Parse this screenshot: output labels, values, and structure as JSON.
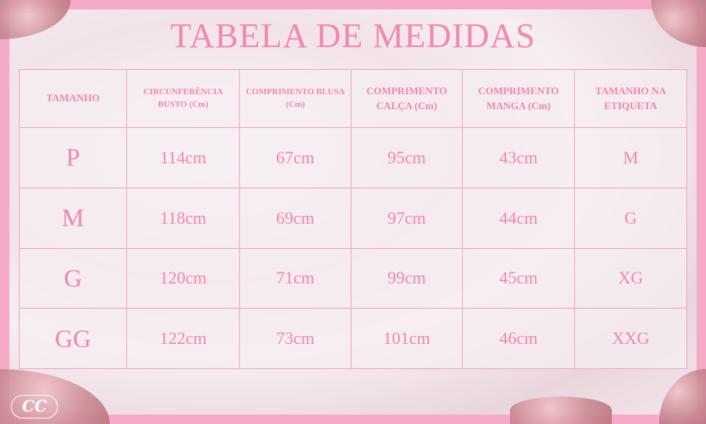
{
  "title": "TABELA DE MEDIDAS",
  "headers": [
    "TAMANHO",
    "CIRCUNFERÊNCIA BUSTO (Cm)",
    "COMPRIMENTO BLUSA (Cm)",
    "COMPRIMENTO CALÇA (Cm)",
    "COMPRIMENTO MANGA (Cm)",
    "TAMANHO NA ETIQUETA"
  ],
  "rows": [
    [
      "P",
      "114cm",
      "67cm",
      "95cm",
      "43cm",
      "M"
    ],
    [
      "M",
      "118cm",
      "69cm",
      "97cm",
      "44cm",
      "G"
    ],
    [
      "G",
      "120cm",
      "71cm",
      "99cm",
      "45cm",
      "XG"
    ],
    [
      "GG",
      "122cm",
      "73cm",
      "101cm",
      "46cm",
      "XXG"
    ]
  ],
  "logo": "CC",
  "colors": {
    "frame": "#f7aac7",
    "text": "#ef86ae"
  }
}
